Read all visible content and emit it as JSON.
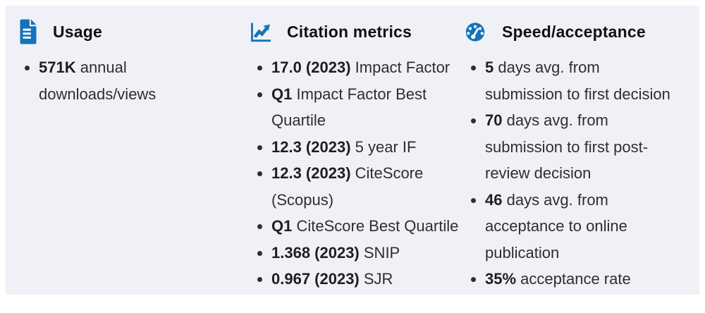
{
  "panel": {
    "background_color": "#f0f1f6",
    "accent_color": "#1374ba",
    "heading_text_color": "#111111",
    "body_text_color": "#2e2e2e",
    "columns": [
      {
        "id": "usage",
        "icon": "document-icon",
        "heading": "Usage",
        "items": [
          {
            "value": "571K",
            "label": "annual downloads/views"
          }
        ]
      },
      {
        "id": "citation-metrics",
        "icon": "line-chart-icon",
        "heading": "Citation metrics",
        "items": [
          {
            "value": "17.0 (2023)",
            "label": "Impact Factor"
          },
          {
            "value": "Q1",
            "label": "Impact Factor Best Quartile"
          },
          {
            "value": "12.3 (2023)",
            "label": "5 year IF"
          },
          {
            "value": "12.3 (2023)",
            "label": "CiteScore (Scopus)"
          },
          {
            "value": "Q1",
            "label": "CiteScore Best Quartile"
          },
          {
            "value": "1.368 (2023)",
            "label": "SNIP"
          },
          {
            "value": "0.967 (2023)",
            "label": "SJR"
          }
        ]
      },
      {
        "id": "speed-acceptance",
        "icon": "speedometer-icon",
        "heading": "Speed/acceptance",
        "items": [
          {
            "value": "5",
            "label": "days avg. from submission to first decision"
          },
          {
            "value": "70",
            "label": "days avg. from submission to first post-review decision"
          },
          {
            "value": "46",
            "label": "days avg. from acceptance to online publication"
          },
          {
            "value": "35%",
            "label": "acceptance rate"
          }
        ]
      }
    ]
  }
}
